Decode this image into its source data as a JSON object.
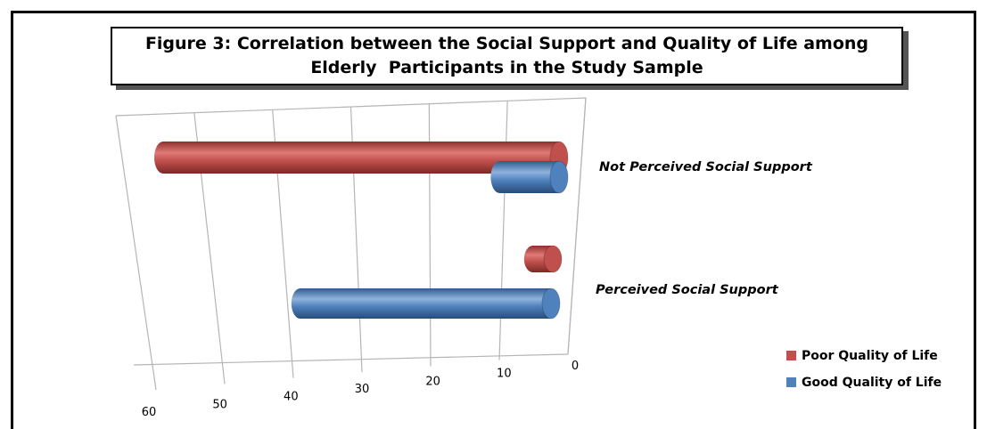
{
  "chart_data": {
    "type": "bar",
    "orientation": "horizontal",
    "title_lines": [
      "Figure 3: Correlation between the Social Support and Quality of Life among",
      "Elderly  Participants in the Study Sample"
    ],
    "categories": [
      "Not Perceived Social Support",
      "Perceived Social Support"
    ],
    "series": [
      {
        "name": "Poor Quality of Life",
        "color": "#c0504d",
        "values": [
          60,
          3
        ]
      },
      {
        "name": "Good Quality of Life",
        "color": "#4f81bd",
        "values": [
          9,
          38
        ]
      }
    ],
    "xticks": [
      0,
      10,
      20,
      30,
      40,
      50,
      60
    ],
    "xlim": [
      0,
      60
    ],
    "axis_direction": "reversed",
    "grid": true,
    "legend_position": "bottom-right",
    "style": "3d-cylinder"
  }
}
